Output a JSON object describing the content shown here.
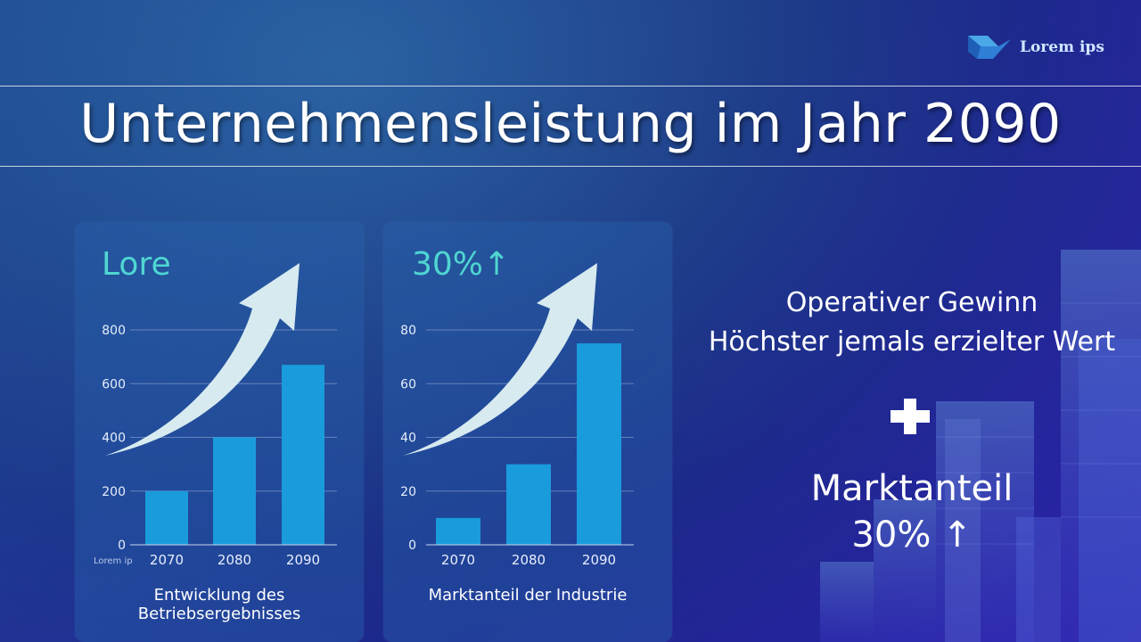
{
  "logo": {
    "text": "Lorem ips",
    "icon": "logo-icon"
  },
  "title": "Unternehmensleistung im Jahr 2090",
  "cards": [
    {
      "headline": "Lore",
      "caption": "Entwicklung des Betriebsergebnisses",
      "watermark": "Lorem ip"
    },
    {
      "headline": "30%↑",
      "caption": "Marktanteil der Industrie"
    }
  ],
  "right_panel": {
    "line1": "Operativer Gewinn",
    "line2": "Höchster jemals erzielter Wert",
    "plus_icon": "plus-icon",
    "line3": "Marktanteil",
    "line4": "30% ↑"
  },
  "colors": {
    "bar": "#1a9bdc",
    "accent": "#4fd6d2",
    "arrow": "#e6f7f7"
  },
  "chart_data": [
    {
      "type": "bar",
      "categories": [
        "2070",
        "2080",
        "2090"
      ],
      "values": [
        200,
        400,
        670
      ],
      "ylim": [
        0,
        800
      ],
      "yticks": [
        "0",
        "200",
        "400",
        "600",
        "800"
      ],
      "grid": true,
      "title": "",
      "xlabel": "",
      "ylabel": ""
    },
    {
      "type": "bar",
      "categories": [
        "2070",
        "2080",
        "2090"
      ],
      "values": [
        10,
        30,
        75
      ],
      "ylim": [
        0,
        80
      ],
      "yticks": [
        "0",
        "20",
        "40",
        "60",
        "80"
      ],
      "grid": true,
      "title": "",
      "xlabel": "",
      "ylabel": ""
    }
  ]
}
